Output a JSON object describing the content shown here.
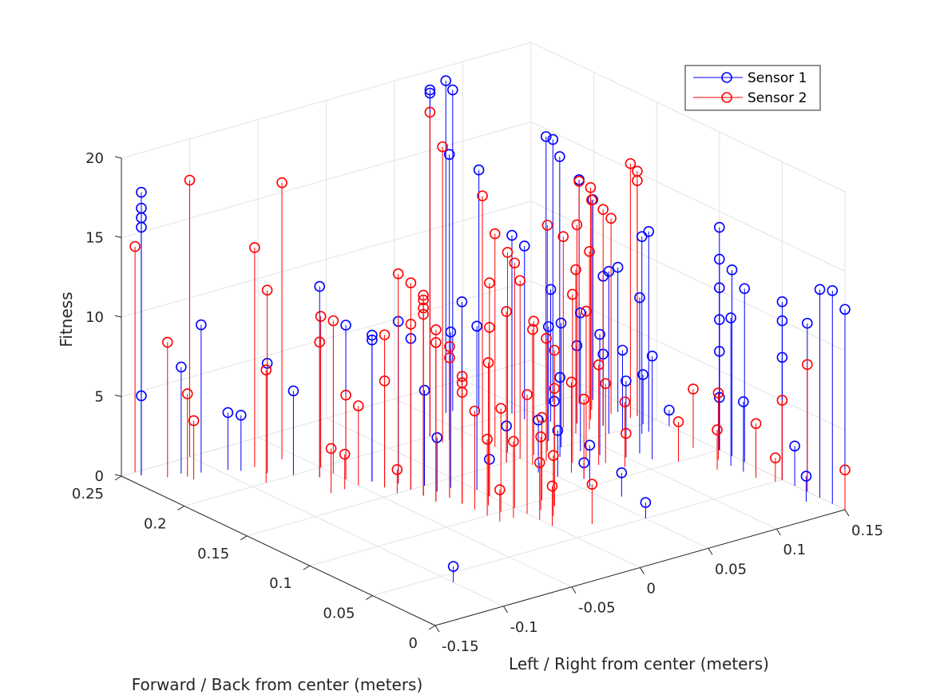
{
  "chart_data": {
    "type": "scatter",
    "subtype": "stem3",
    "title": "",
    "xlabel": "Left / Right from center (meters)",
    "ylabel": "Forward / Back from center (meters)",
    "zlabel": "Fitness",
    "xlim": [
      -0.15,
      0.15
    ],
    "ylim": [
      0,
      0.25
    ],
    "zlim": [
      0,
      20
    ],
    "x_ticks": [
      "-0.15",
      "-0.1",
      "-0.05",
      "0",
      "0.05",
      "0.1",
      "0.15"
    ],
    "y_ticks": [
      "0",
      "0.05",
      "0.1",
      "0.15",
      "0.2",
      "0.25"
    ],
    "z_ticks": [
      "0",
      "5",
      "10",
      "15",
      "20"
    ],
    "grid": true,
    "legend_position": "top-right",
    "series": [
      {
        "name": "Sensor 1",
        "color": "#0000ff",
        "points": [
          [
            -0.14,
            0.245,
            5.0
          ],
          [
            -0.14,
            0.245,
            15.6
          ],
          [
            -0.14,
            0.245,
            16.2
          ],
          [
            -0.14,
            0.245,
            16.8
          ],
          [
            -0.14,
            0.245,
            17.8
          ],
          [
            -0.12,
            0.235,
            6.7
          ],
          [
            -0.11,
            0.23,
            9.3
          ],
          [
            -0.095,
            0.225,
            3.6
          ],
          [
            -0.09,
            0.22,
            3.5
          ],
          [
            -0.08,
            0.21,
            6.9
          ],
          [
            -0.07,
            0.2,
            5.3
          ],
          [
            -0.06,
            0.19,
            12.0
          ],
          [
            -0.05,
            0.18,
            9.7
          ],
          [
            -0.04,
            0.17,
            8.9
          ],
          [
            -0.04,
            0.17,
            9.2
          ],
          [
            -0.03,
            0.16,
            10.2
          ],
          [
            -0.03,
            0.15,
            9.5
          ],
          [
            -0.02,
            0.15,
            6.0
          ],
          [
            -0.02,
            0.14,
            3.4
          ],
          [
            -0.01,
            0.14,
            9.8
          ],
          [
            0.0,
            0.13,
            10.3
          ],
          [
            0.0,
            0.12,
            2.3
          ],
          [
            -0.1,
            0.04,
            1.0
          ],
          [
            0.03,
            0.2,
            21.8
          ],
          [
            0.03,
            0.2,
            21.6
          ],
          [
            0.035,
            0.19,
            18.0
          ],
          [
            0.035,
            0.18,
            9.1
          ],
          [
            0.04,
            0.15,
            2.3
          ],
          [
            0.045,
            0.13,
            3.3
          ],
          [
            0.05,
            0.12,
            2.9
          ],
          [
            0.055,
            0.1,
            2.6
          ],
          [
            0.06,
            0.08,
            1.5
          ],
          [
            0.06,
            0.11,
            1.0
          ],
          [
            0.07,
            0.14,
            5.0
          ],
          [
            0.075,
            0.15,
            3.0
          ],
          [
            0.08,
            0.16,
            7.2
          ],
          [
            0.08,
            0.15,
            7.8
          ],
          [
            0.085,
            0.14,
            8.7
          ],
          [
            0.09,
            0.13,
            7.6
          ],
          [
            0.1,
            0.12,
            4.8
          ],
          [
            0.11,
            0.11,
            6.5
          ],
          [
            0.11,
            0.12,
            9.8
          ],
          [
            0.115,
            0.15,
            10.2
          ],
          [
            0.12,
            0.16,
            9.4
          ],
          [
            0.125,
            0.15,
            5.0
          ],
          [
            0.13,
            0.14,
            12.4
          ],
          [
            0.135,
            0.14,
            12.6
          ],
          [
            0.05,
            0.05,
            1.0
          ],
          [
            0.06,
            0.22,
            20.9
          ],
          [
            0.065,
            0.22,
            20.2
          ],
          [
            0.075,
            0.21,
            15.3
          ],
          [
            0.09,
            0.2,
            11.2
          ],
          [
            0.09,
            0.19,
            10.9
          ],
          [
            0.1,
            0.18,
            8.3
          ],
          [
            0.11,
            0.17,
            4.9
          ],
          [
            0.12,
            0.16,
            4.5
          ],
          [
            0.115,
            0.2,
            16.8
          ],
          [
            0.12,
            0.2,
            16.5
          ],
          [
            0.125,
            0.2,
            15.3
          ],
          [
            0.13,
            0.19,
            14.1
          ],
          [
            0.14,
            0.19,
            12.6
          ],
          [
            0.14,
            0.17,
            9.1
          ],
          [
            0.14,
            0.15,
            3.1
          ],
          [
            0.15,
            0.14,
            1.0
          ],
          [
            0.15,
            0.1,
            14.0
          ],
          [
            0.15,
            0.1,
            12.0
          ],
          [
            0.15,
            0.1,
            10.2
          ],
          [
            0.15,
            0.1,
            8.2
          ],
          [
            0.15,
            0.1,
            6.2
          ],
          [
            0.15,
            0.1,
            3.3
          ],
          [
            0.15,
            0.09,
            11.7
          ],
          [
            0.15,
            0.08,
            10.9
          ],
          [
            0.14,
            0.08,
            9.3
          ],
          [
            0.14,
            0.07,
            4.4
          ],
          [
            0.15,
            0.05,
            11.2
          ],
          [
            0.15,
            0.05,
            10.0
          ],
          [
            0.15,
            0.05,
            7.7
          ],
          [
            0.15,
            0.04,
            2.5
          ],
          [
            0.15,
            0.03,
            10.6
          ],
          [
            0.14,
            0.02,
            1.6
          ],
          [
            0.15,
            0.0,
            12.6
          ],
          [
            0.15,
            0.02,
            13.1
          ],
          [
            0.15,
            0.01,
            13.4
          ]
        ]
      },
      {
        "name": "Sensor 2",
        "color": "#ff0000",
        "points": [
          [
            -0.14,
            0.25,
            14.2
          ],
          [
            -0.13,
            0.235,
            8.5
          ],
          [
            -0.12,
            0.23,
            5.2
          ],
          [
            -0.12,
            0.225,
            3.7
          ],
          [
            -0.1,
            0.25,
            17.4
          ],
          [
            -0.08,
            0.22,
            13.8
          ],
          [
            -0.08,
            0.21,
            11.5
          ],
          [
            -0.09,
            0.2,
            7.1
          ],
          [
            -0.06,
            0.22,
            17.4
          ],
          [
            -0.05,
            0.2,
            9.5
          ],
          [
            -0.05,
            0.19,
            9.6
          ],
          [
            -0.06,
            0.19,
            8.5
          ],
          [
            -0.05,
            0.18,
            5.3
          ],
          [
            -0.05,
            0.17,
            5.0
          ],
          [
            -0.07,
            0.17,
            2.8
          ],
          [
            -0.06,
            0.17,
            2.2
          ],
          [
            -0.04,
            0.16,
            9.6
          ],
          [
            -0.04,
            0.16,
            6.7
          ],
          [
            -0.04,
            0.15,
            1.5
          ],
          [
            -0.03,
            0.16,
            13.2
          ],
          [
            -0.03,
            0.15,
            10.4
          ],
          [
            -0.03,
            0.15,
            13.0
          ],
          [
            -0.03,
            0.14,
            12.6
          ],
          [
            -0.03,
            0.14,
            12.3
          ],
          [
            -0.03,
            0.14,
            11.8
          ],
          [
            -0.03,
            0.14,
            11.4
          ],
          [
            -0.03,
            0.13,
            10.8
          ],
          [
            -0.03,
            0.13,
            10.0
          ],
          [
            -0.02,
            0.13,
            9.5
          ],
          [
            -0.02,
            0.13,
            8.8
          ],
          [
            -0.02,
            0.12,
            8.0
          ],
          [
            -0.02,
            0.12,
            7.6
          ],
          [
            -0.02,
            0.12,
            7.0
          ],
          [
            -0.02,
            0.11,
            6.2
          ],
          [
            -0.02,
            0.1,
            4.8
          ],
          [
            -0.02,
            0.09,
            2.0
          ],
          [
            -0.01,
            0.11,
            9.0
          ],
          [
            -0.01,
            0.1,
            6.5
          ],
          [
            -0.01,
            0.09,
            4.8
          ],
          [
            0.0,
            0.12,
            10.6
          ],
          [
            0.0,
            0.12,
            13.4
          ],
          [
            0.0,
            0.1,
            15.4
          ],
          [
            0.0,
            0.09,
            7.5
          ],
          [
            0.0,
            0.08,
            3.6
          ],
          [
            0.0,
            0.07,
            2.5
          ],
          [
            0.01,
            0.08,
            3.8
          ],
          [
            0.01,
            0.09,
            4.6
          ],
          [
            0.02,
            0.09,
            9.8
          ],
          [
            0.02,
            0.09,
            7.4
          ],
          [
            0.02,
            0.1,
            5.2
          ],
          [
            0.02,
            0.06,
            2.5
          ],
          [
            0.03,
            0.2,
            20.4
          ],
          [
            0.03,
            0.19,
            18.6
          ],
          [
            0.05,
            0.18,
            15.4
          ],
          [
            0.05,
            0.17,
            13.4
          ],
          [
            0.05,
            0.16,
            12.6
          ],
          [
            0.05,
            0.15,
            11.2
          ],
          [
            0.04,
            0.15,
            9.5
          ],
          [
            0.05,
            0.14,
            8.5
          ],
          [
            0.06,
            0.15,
            8.4
          ],
          [
            0.06,
            0.14,
            7.7
          ],
          [
            0.06,
            0.12,
            5.7
          ],
          [
            0.06,
            0.11,
            5.0
          ],
          [
            0.07,
            0.15,
            14.2
          ],
          [
            0.07,
            0.13,
            10.6
          ],
          [
            0.08,
            0.13,
            9.3
          ],
          [
            0.08,
            0.12,
            6.3
          ],
          [
            0.085,
            0.12,
            5.0
          ],
          [
            0.09,
            0.11,
            4.1
          ],
          [
            0.1,
            0.17,
            12.0
          ],
          [
            0.1,
            0.16,
            10.3
          ],
          [
            0.1,
            0.12,
            1.5
          ],
          [
            0.11,
            0.17,
            12.5
          ],
          [
            0.11,
            0.16,
            11.2
          ],
          [
            0.12,
            0.17,
            14.6
          ],
          [
            0.12,
            0.16,
            13.6
          ],
          [
            0.13,
            0.19,
            14.0
          ],
          [
            0.13,
            0.18,
            13.2
          ],
          [
            0.135,
            0.17,
            12.3
          ],
          [
            0.12,
            0.1,
            2.5
          ],
          [
            0.14,
            0.11,
            3.7
          ],
          [
            0.14,
            0.09,
            4.2
          ],
          [
            0.14,
            0.16,
            16.0
          ],
          [
            0.145,
            0.16,
            15.4
          ],
          [
            0.145,
            0.16,
            14.8
          ],
          [
            0.13,
            0.08,
            2.5
          ],
          [
            0.14,
            0.06,
            3.4
          ],
          [
            0.15,
            0.05,
            5.0
          ],
          [
            0.145,
            0.05,
            1.5
          ],
          [
            0.15,
            0.03,
            8.0
          ],
          [
            0.15,
            0.0,
            2.5
          ]
        ]
      }
    ]
  },
  "legend": {
    "items": [
      {
        "label": "Sensor 1",
        "color": "#0000ff"
      },
      {
        "label": "Sensor 2",
        "color": "#ff0000"
      }
    ]
  }
}
